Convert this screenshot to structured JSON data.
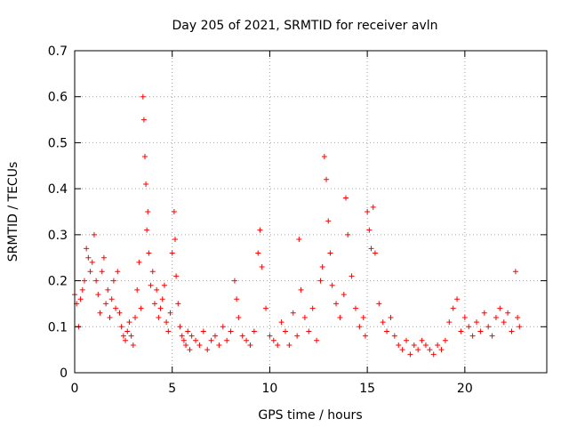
{
  "chart_data": {
    "type": "scatter",
    "title": "Day 205 of 2021, SRMTID for receiver avln",
    "xlabel": "GPS time / hours",
    "ylabel": "SRMTID / TECUs",
    "xlim": [
      0,
      24.2
    ],
    "ylim": [
      0,
      0.7
    ],
    "xticks": [
      0,
      5,
      10,
      15,
      20
    ],
    "xtick_labels": [
      "0",
      "5",
      "10",
      "15",
      "20"
    ],
    "yticks": [
      0,
      0.1,
      0.2,
      0.3,
      0.4,
      0.5,
      0.6,
      0.7
    ],
    "ytick_labels": [
      "0",
      "0.1",
      "0.2",
      "0.3",
      "0.4",
      "0.5",
      "0.6",
      "0.7"
    ],
    "grid": true,
    "marker": "+",
    "color": "#ff0000",
    "series": [
      {
        "name": "avln",
        "x": [
          0.0,
          0.1,
          0.2,
          0.3,
          0.4,
          0.5,
          0.6,
          0.7,
          0.8,
          0.9,
          1.0,
          1.1,
          1.2,
          1.3,
          1.4,
          1.5,
          1.6,
          1.7,
          1.8,
          1.9,
          2.0,
          2.1,
          2.2,
          2.3,
          2.4,
          2.5,
          2.6,
          2.7,
          2.8,
          2.9,
          3.0,
          3.1,
          3.2,
          3.3,
          3.4,
          3.5,
          3.55,
          3.6,
          3.65,
          3.7,
          3.75,
          3.8,
          3.9,
          4.0,
          4.1,
          4.2,
          4.3,
          4.4,
          4.5,
          4.6,
          4.7,
          4.8,
          4.9,
          5.0,
          5.1,
          5.15,
          5.2,
          5.3,
          5.4,
          5.5,
          5.6,
          5.7,
          5.8,
          5.9,
          6.0,
          6.2,
          6.4,
          6.6,
          6.8,
          7.0,
          7.2,
          7.4,
          7.6,
          7.8,
          8.0,
          8.2,
          8.3,
          8.4,
          8.6,
          8.8,
          9.0,
          9.2,
          9.4,
          9.5,
          9.6,
          9.8,
          10.0,
          10.2,
          10.4,
          10.6,
          10.8,
          11.0,
          11.2,
          11.4,
          11.5,
          11.6,
          11.8,
          12.0,
          12.2,
          12.4,
          12.6,
          12.7,
          12.8,
          12.9,
          13.0,
          13.1,
          13.2,
          13.4,
          13.6,
          13.8,
          13.9,
          14.0,
          14.2,
          14.4,
          14.6,
          14.8,
          14.9,
          15.0,
          15.1,
          15.2,
          15.3,
          15.4,
          15.6,
          15.8,
          16.0,
          16.2,
          16.4,
          16.6,
          16.8,
          17.0,
          17.2,
          17.4,
          17.6,
          17.8,
          18.0,
          18.2,
          18.4,
          18.6,
          18.8,
          19.0,
          19.2,
          19.4,
          19.6,
          19.8,
          20.0,
          20.2,
          20.4,
          20.6,
          20.8,
          21.0,
          21.2,
          21.4,
          21.6,
          21.8,
          22.0,
          22.2,
          22.4,
          22.6,
          22.7,
          22.8
        ],
        "y": [
          0.17,
          0.15,
          0.1,
          0.16,
          0.18,
          0.2,
          0.27,
          0.25,
          0.22,
          0.24,
          0.3,
          0.2,
          0.17,
          0.13,
          0.22,
          0.25,
          0.15,
          0.18,
          0.12,
          0.16,
          0.2,
          0.14,
          0.22,
          0.13,
          0.1,
          0.08,
          0.07,
          0.09,
          0.11,
          0.08,
          0.06,
          0.12,
          0.18,
          0.24,
          0.14,
          0.6,
          0.55,
          0.47,
          0.41,
          0.31,
          0.35,
          0.26,
          0.19,
          0.22,
          0.15,
          0.18,
          0.12,
          0.14,
          0.16,
          0.19,
          0.11,
          0.09,
          0.13,
          0.26,
          0.35,
          0.29,
          0.21,
          0.15,
          0.1,
          0.08,
          0.07,
          0.06,
          0.09,
          0.05,
          0.08,
          0.07,
          0.06,
          0.09,
          0.05,
          0.07,
          0.08,
          0.06,
          0.1,
          0.07,
          0.09,
          0.2,
          0.16,
          0.12,
          0.08,
          0.07,
          0.06,
          0.09,
          0.26,
          0.31,
          0.23,
          0.14,
          0.08,
          0.07,
          0.06,
          0.11,
          0.09,
          0.06,
          0.13,
          0.08,
          0.29,
          0.18,
          0.12,
          0.09,
          0.14,
          0.07,
          0.2,
          0.23,
          0.47,
          0.42,
          0.33,
          0.26,
          0.19,
          0.15,
          0.12,
          0.17,
          0.38,
          0.3,
          0.21,
          0.14,
          0.1,
          0.12,
          0.08,
          0.35,
          0.31,
          0.27,
          0.36,
          0.26,
          0.15,
          0.11,
          0.09,
          0.12,
          0.08,
          0.06,
          0.05,
          0.07,
          0.04,
          0.06,
          0.05,
          0.07,
          0.06,
          0.05,
          0.04,
          0.06,
          0.05,
          0.07,
          0.11,
          0.14,
          0.16,
          0.09,
          0.12,
          0.1,
          0.08,
          0.11,
          0.09,
          0.13,
          0.1,
          0.08,
          0.12,
          0.14,
          0.11,
          0.13,
          0.09,
          0.22,
          0.12,
          0.1
        ]
      }
    ]
  }
}
